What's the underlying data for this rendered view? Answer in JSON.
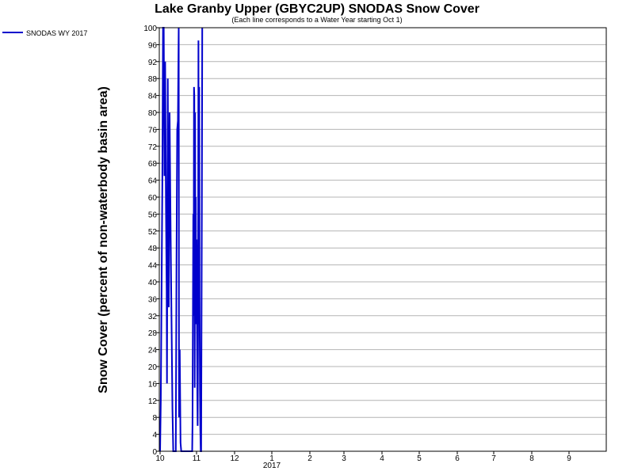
{
  "chart_data": {
    "type": "line",
    "title": "Lake Granby Upper (GBYC2UP) SNODAS Snow Cover",
    "subtitle": "(Each line corresponds to a Water Year starting Oct 1)",
    "ylabel": "Snow Cover (percent of non-waterbody basin area)",
    "xlabel": "",
    "ylim": [
      0,
      100
    ],
    "y_ticks": [
      "0",
      "4",
      "8",
      "12",
      "16",
      "20",
      "24",
      "28",
      "32",
      "36",
      "40",
      "44",
      "48",
      "52",
      "56",
      "60",
      "64",
      "68",
      "72",
      "76",
      "80",
      "84",
      "88",
      "92",
      "96",
      "100"
    ],
    "x_ticks": [
      "10",
      "11",
      "12",
      "1",
      "2",
      "3",
      "4",
      "5",
      "6",
      "7",
      "8",
      "9"
    ],
    "x_year_label": "2017",
    "grid": true,
    "legend_position": "top-left",
    "series": [
      {
        "name": "SNODAS WY 2017",
        "color": "#0000cc",
        "x_start_month": 10,
        "x_unit": "months since Oct 1",
        "points": [
          [
            0.0,
            0
          ],
          [
            0.02,
            12
          ],
          [
            0.04,
            36
          ],
          [
            0.06,
            62
          ],
          [
            0.08,
            100
          ],
          [
            0.1,
            100
          ],
          [
            0.12,
            65
          ],
          [
            0.14,
            92
          ],
          [
            0.16,
            58
          ],
          [
            0.18,
            38
          ],
          [
            0.19,
            16
          ],
          [
            0.21,
            88
          ],
          [
            0.23,
            40
          ],
          [
            0.24,
            34
          ],
          [
            0.26,
            80
          ],
          [
            0.28,
            60
          ],
          [
            0.3,
            42
          ],
          [
            0.32,
            26
          ],
          [
            0.34,
            10
          ],
          [
            0.36,
            0
          ],
          [
            0.4,
            0
          ],
          [
            0.43,
            0
          ],
          [
            0.45,
            44
          ],
          [
            0.47,
            76
          ],
          [
            0.49,
            78
          ],
          [
            0.51,
            100
          ],
          [
            0.52,
            8
          ],
          [
            0.54,
            24
          ],
          [
            0.56,
            2
          ],
          [
            0.58,
            0
          ],
          [
            0.7,
            0
          ],
          [
            0.75,
            0
          ],
          [
            0.82,
            0
          ],
          [
            0.86,
            0
          ],
          [
            0.88,
            0
          ],
          [
            0.89,
            6
          ],
          [
            0.91,
            56
          ],
          [
            0.92,
            32
          ],
          [
            0.93,
            86
          ],
          [
            0.94,
            84
          ],
          [
            0.95,
            15
          ],
          [
            0.96,
            80
          ],
          [
            0.97,
            36
          ],
          [
            0.98,
            60
          ],
          [
            0.99,
            30
          ],
          [
            1.0,
            50
          ],
          [
            1.02,
            14
          ],
          [
            1.03,
            6
          ],
          [
            1.04,
            28
          ],
          [
            1.05,
            97
          ],
          [
            1.06,
            30
          ],
          [
            1.07,
            86
          ],
          [
            1.08,
            37
          ],
          [
            1.09,
            15
          ],
          [
            1.1,
            5
          ],
          [
            1.11,
            0
          ],
          [
            1.12,
            0
          ],
          [
            1.13,
            25
          ],
          [
            1.14,
            57
          ],
          [
            1.15,
            100
          ]
        ]
      }
    ]
  }
}
